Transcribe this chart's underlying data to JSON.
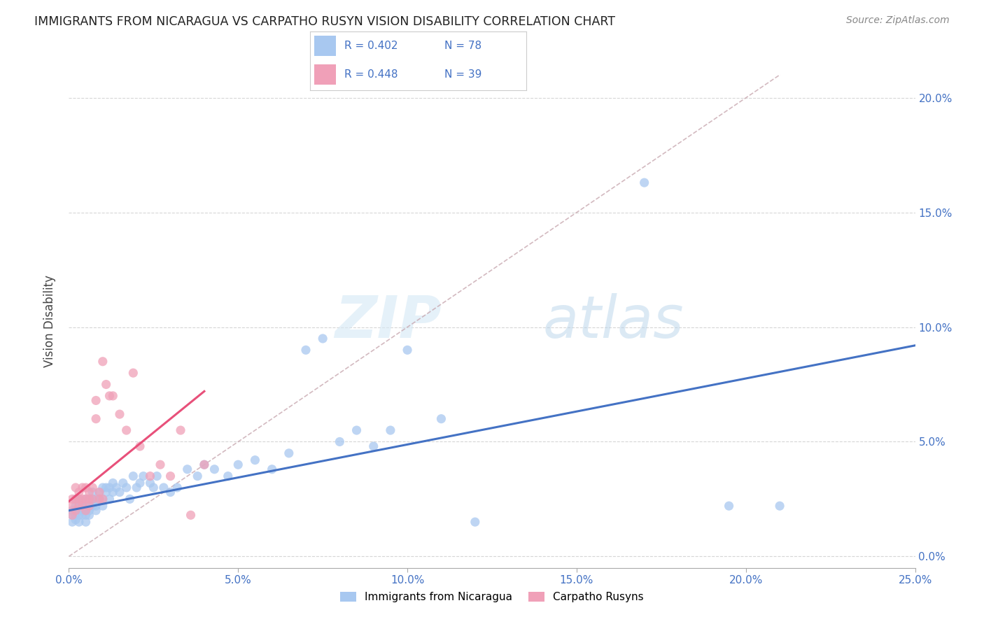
{
  "title": "IMMIGRANTS FROM NICARAGUA VS CARPATHO RUSYN VISION DISABILITY CORRELATION CHART",
  "source": "Source: ZipAtlas.com",
  "ylabel": "Vision Disability",
  "watermark_zip": "ZIP",
  "watermark_atlas": "atlas",
  "xlim": [
    0.0,
    0.25
  ],
  "ylim": [
    -0.005,
    0.21
  ],
  "xticks": [
    0.0,
    0.05,
    0.1,
    0.15,
    0.2,
    0.25
  ],
  "yticks": [
    0.0,
    0.05,
    0.1,
    0.15,
    0.2
  ],
  "xtick_labels": [
    "0.0%",
    "5.0%",
    "10.0%",
    "15.0%",
    "20.0%",
    "25.0%"
  ],
  "ytick_labels": [
    "0.0%",
    "5.0%",
    "10.0%",
    "15.0%",
    "20.0%"
  ],
  "series1_label": "Immigrants from Nicaragua",
  "series2_label": "Carpatho Rusyns",
  "series1_color": "#a8c8f0",
  "series2_color": "#f0a0b8",
  "series1_line_color": "#4472c4",
  "series2_line_color": "#e8507a",
  "refline_color": "#c8a8b0",
  "title_color": "#222222",
  "axis_color": "#4472c4",
  "series1_R": 0.402,
  "series1_N": 78,
  "series2_R": 0.448,
  "series2_N": 39,
  "series1_x": [
    0.001,
    0.001,
    0.001,
    0.002,
    0.002,
    0.002,
    0.002,
    0.003,
    0.003,
    0.003,
    0.003,
    0.003,
    0.004,
    0.004,
    0.004,
    0.004,
    0.005,
    0.005,
    0.005,
    0.005,
    0.005,
    0.006,
    0.006,
    0.006,
    0.006,
    0.007,
    0.007,
    0.007,
    0.008,
    0.008,
    0.008,
    0.009,
    0.009,
    0.01,
    0.01,
    0.01,
    0.011,
    0.011,
    0.012,
    0.012,
    0.013,
    0.013,
    0.014,
    0.015,
    0.016,
    0.017,
    0.018,
    0.019,
    0.02,
    0.021,
    0.022,
    0.024,
    0.025,
    0.026,
    0.028,
    0.03,
    0.032,
    0.035,
    0.038,
    0.04,
    0.043,
    0.047,
    0.05,
    0.055,
    0.06,
    0.065,
    0.07,
    0.075,
    0.08,
    0.085,
    0.09,
    0.095,
    0.1,
    0.11,
    0.12,
    0.17,
    0.195,
    0.21
  ],
  "series1_y": [
    0.02,
    0.018,
    0.015,
    0.022,
    0.018,
    0.025,
    0.016,
    0.02,
    0.022,
    0.025,
    0.018,
    0.015,
    0.022,
    0.02,
    0.018,
    0.024,
    0.022,
    0.02,
    0.018,
    0.025,
    0.015,
    0.022,
    0.02,
    0.025,
    0.018,
    0.025,
    0.022,
    0.028,
    0.02,
    0.025,
    0.022,
    0.028,
    0.025,
    0.03,
    0.022,
    0.025,
    0.028,
    0.03,
    0.03,
    0.025,
    0.028,
    0.032,
    0.03,
    0.028,
    0.032,
    0.03,
    0.025,
    0.035,
    0.03,
    0.032,
    0.035,
    0.032,
    0.03,
    0.035,
    0.03,
    0.028,
    0.03,
    0.038,
    0.035,
    0.04,
    0.038,
    0.035,
    0.04,
    0.042,
    0.038,
    0.045,
    0.09,
    0.095,
    0.05,
    0.055,
    0.048,
    0.055,
    0.09,
    0.06,
    0.015,
    0.163,
    0.022,
    0.022
  ],
  "series2_x": [
    0.001,
    0.001,
    0.001,
    0.002,
    0.002,
    0.002,
    0.003,
    0.003,
    0.003,
    0.004,
    0.004,
    0.004,
    0.005,
    0.005,
    0.005,
    0.006,
    0.006,
    0.006,
    0.007,
    0.007,
    0.008,
    0.008,
    0.009,
    0.009,
    0.01,
    0.01,
    0.011,
    0.012,
    0.013,
    0.015,
    0.017,
    0.019,
    0.021,
    0.024,
    0.027,
    0.03,
    0.033,
    0.036,
    0.04
  ],
  "series2_y": [
    0.022,
    0.018,
    0.025,
    0.02,
    0.025,
    0.03,
    0.022,
    0.028,
    0.025,
    0.03,
    0.025,
    0.022,
    0.025,
    0.03,
    0.02,
    0.025,
    0.022,
    0.028,
    0.025,
    0.03,
    0.06,
    0.068,
    0.028,
    0.025,
    0.085,
    0.025,
    0.075,
    0.07,
    0.07,
    0.062,
    0.055,
    0.08,
    0.048,
    0.035,
    0.04,
    0.035,
    0.055,
    0.018,
    0.04
  ],
  "blue_line_x0": 0.0,
  "blue_line_y0": 0.02,
  "blue_line_x1": 0.25,
  "blue_line_y1": 0.092,
  "pink_line_x0": 0.0,
  "pink_line_y0": 0.024,
  "pink_line_x1": 0.04,
  "pink_line_y1": 0.072
}
